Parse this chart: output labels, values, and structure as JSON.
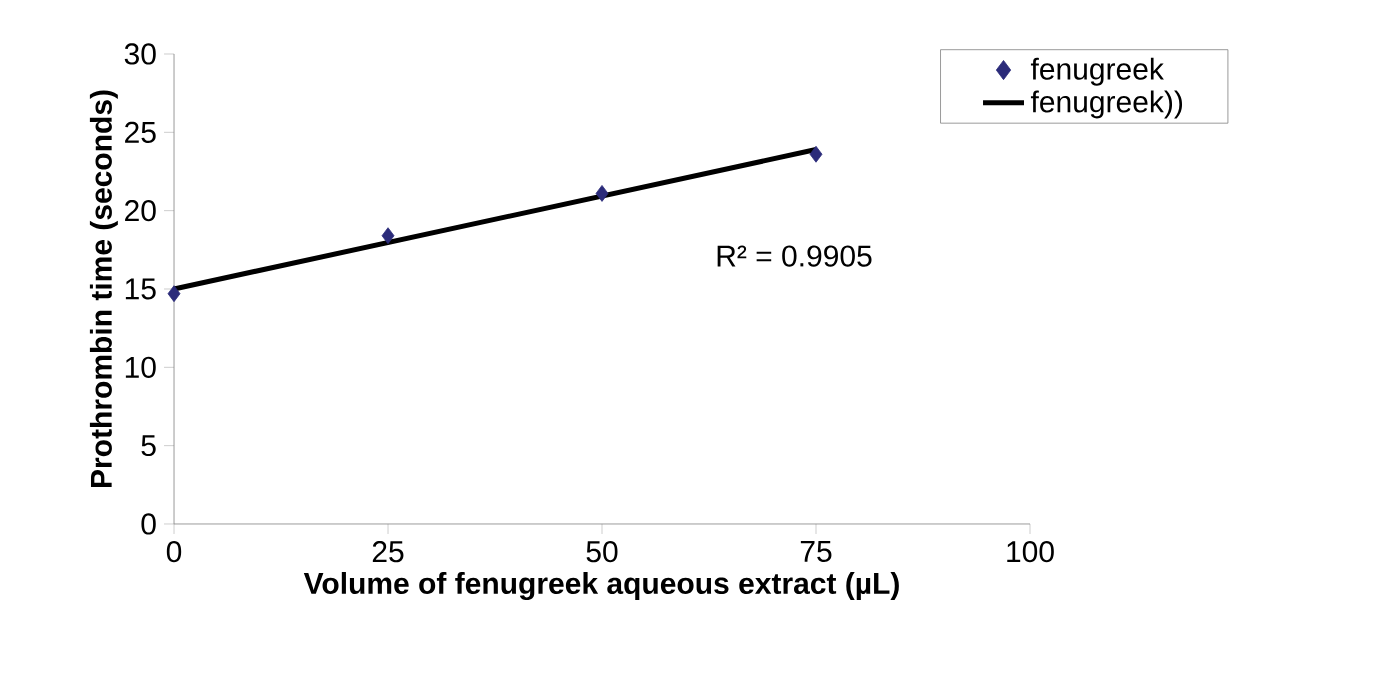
{
  "chart_data": {
    "type": "scatter",
    "xlabel": "Volume of fenugreek aqueous extract (µL)",
    "ylabel": "Prothrombin time (seconds)",
    "series": [
      {
        "name": "fenugreek",
        "color": "#2b2b7a",
        "marker": "diamond",
        "x": [
          0,
          25,
          50,
          75
        ],
        "values": [
          14.7,
          18.4,
          21.1,
          23.6
        ]
      },
      {
        "name": "fenugreek))",
        "type": "line",
        "color": "#000000",
        "marker": "none",
        "x": [
          0,
          75
        ],
        "values": [
          15.0,
          23.9
        ]
      }
    ],
    "xlim": [
      0,
      100
    ],
    "xticks": [
      0,
      25,
      50,
      75,
      100
    ],
    "ylim": [
      0,
      30
    ],
    "yticks": [
      0,
      5,
      10,
      15,
      20,
      25,
      30
    ],
    "grid": false,
    "legend": "top right",
    "annotations": [
      "R² = 0.9905"
    ]
  }
}
